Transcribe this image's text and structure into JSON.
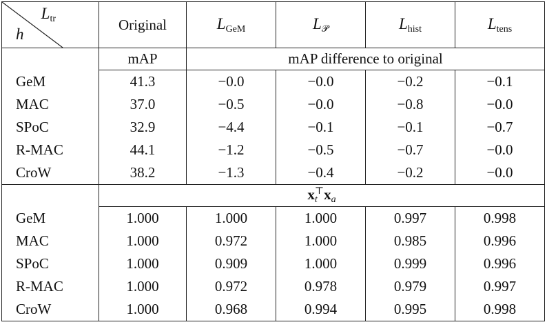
{
  "table": {
    "corner": {
      "col_label": {
        "symbol": "L",
        "sub": "tr"
      },
      "row_label": "h"
    },
    "columns": [
      "Original",
      {
        "symbol": "L",
        "sub": "GeM"
      },
      {
        "symbol": "L",
        "sub": "𝒫"
      },
      {
        "symbol": "L",
        "sub": "hist"
      },
      {
        "symbol": "L",
        "sub": "tens"
      }
    ],
    "sections": [
      {
        "headers": [
          "mAP",
          "mAP difference to original"
        ],
        "rows": [
          {
            "name": "GeM",
            "values": [
              "41.3",
              "−0.0",
              "−0.0",
              "−0.2",
              "−0.1"
            ]
          },
          {
            "name": "MAC",
            "values": [
              "37.0",
              "−0.5",
              "−0.0",
              "−0.8",
              "−0.0"
            ]
          },
          {
            "name": "SPoC",
            "values": [
              "32.9",
              "−4.4",
              "−0.1",
              "−0.1",
              "−0.7"
            ]
          },
          {
            "name": "R-MAC",
            "values": [
              "44.1",
              "−1.2",
              "−0.5",
              "−0.7",
              "−0.0"
            ]
          },
          {
            "name": "CroW",
            "values": [
              "38.2",
              "−1.3",
              "−0.4",
              "−0.2",
              "−0.0"
            ]
          }
        ]
      },
      {
        "header": [
          "x",
          "t",
          "⊤",
          "x",
          "a"
        ],
        "rows": [
          {
            "name": "GeM",
            "values": [
              "1.000",
              "1.000",
              "1.000",
              "0.997",
              "0.998"
            ]
          },
          {
            "name": "MAC",
            "values": [
              "1.000",
              "0.972",
              "1.000",
              "0.985",
              "0.996"
            ]
          },
          {
            "name": "SPoC",
            "values": [
              "1.000",
              "0.909",
              "1.000",
              "0.999",
              "0.996"
            ]
          },
          {
            "name": "R-MAC",
            "values": [
              "1.000",
              "0.972",
              "0.978",
              "0.979",
              "0.997"
            ]
          },
          {
            "name": "CroW",
            "values": [
              "1.000",
              "0.968",
              "0.994",
              "0.995",
              "0.998"
            ]
          }
        ]
      }
    ]
  }
}
